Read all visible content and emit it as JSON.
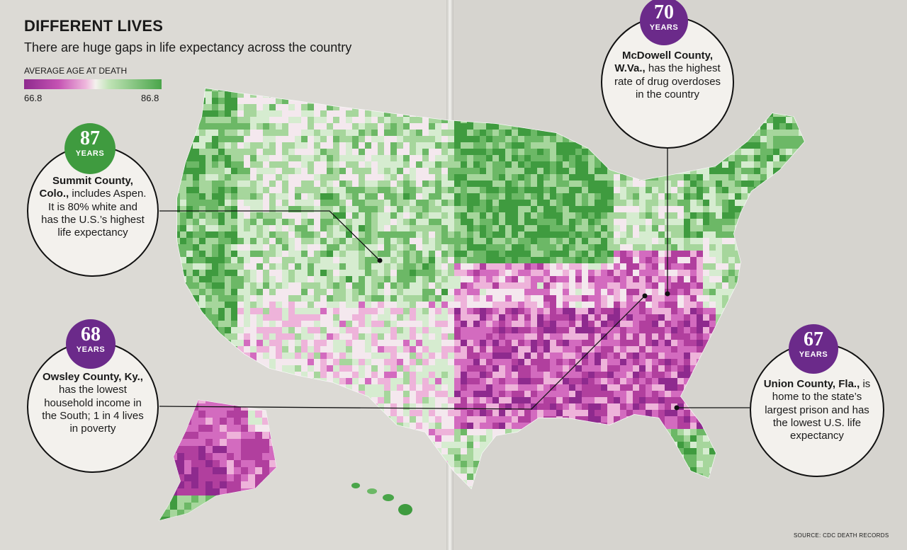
{
  "header": {
    "title": "DIFFERENT LIVES",
    "subtitle": "There are huge gaps in life expectancy across the country"
  },
  "legend": {
    "title": "AVERAGE AGE AT DEATH",
    "min_label": "66.8",
    "max_label": "86.8",
    "color_low": "#8e2a8e",
    "color_mid": "#f4f1ee",
    "color_high": "#4aa54a"
  },
  "callouts": {
    "summit": {
      "years": "87",
      "unit": "YEARS",
      "name": "Summit County, Colo.,",
      "text": "includes Aspen. It is 80% white and has the U.S.’s highest life expectancy",
      "badge_color": "#3f9b3f"
    },
    "owsley": {
      "years": "68",
      "unit": "YEARS",
      "name": "Owsley County, Ky.,",
      "text": "has the lowest household income in the South; 1 in 4 lives in poverty",
      "badge_color": "#6b2a8a"
    },
    "mcdowell": {
      "years": "70",
      "unit": "YEARS",
      "name": "McDowell County, W.Va.,",
      "text": "has the highest rate of drug overdoses in the country",
      "badge_color": "#6b2a8a"
    },
    "union": {
      "years": "67",
      "unit": "YEARS",
      "name": "Union County, Fla.,",
      "text": "is home to the state’s largest prison and has the lowest U.S. life expectancy",
      "badge_color": "#6b2a8a"
    }
  },
  "source": "SOURCE: CDC DEATH RECORDS"
}
